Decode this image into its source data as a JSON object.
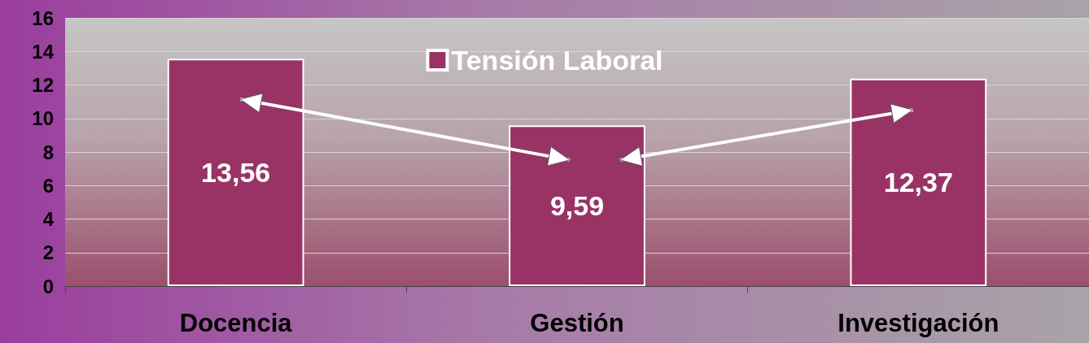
{
  "chart_data": {
    "type": "bar",
    "categories": [
      "Docencia",
      "Gestión",
      "Investigación"
    ],
    "series": [
      {
        "name": "Tensión Laboral",
        "color": "#993366",
        "values": [
          13.56,
          9.59,
          12.37
        ],
        "value_labels": [
          "13,56",
          "9,59",
          "12,37"
        ]
      }
    ],
    "ylim": [
      0,
      16
    ],
    "yticks": [
      0,
      2,
      4,
      6,
      8,
      10,
      12,
      14,
      16
    ],
    "grid": "y",
    "legend": "top"
  }
}
